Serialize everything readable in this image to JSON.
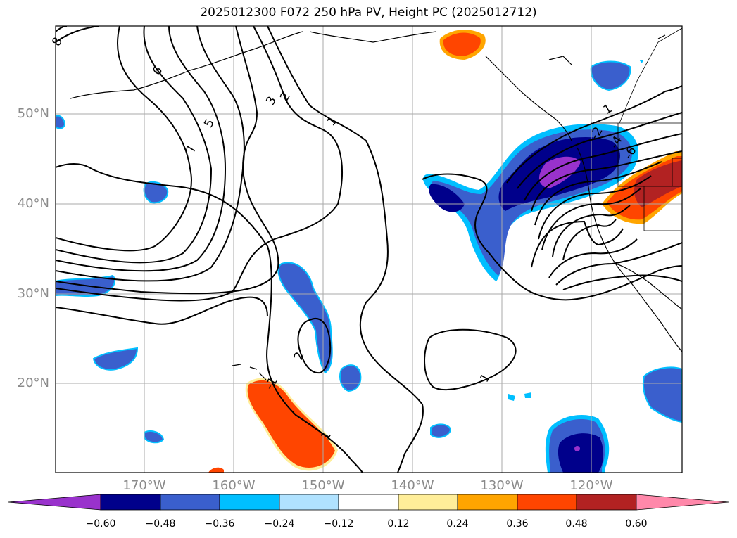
{
  "title": "2025012300 F072 250 hPa PV, Height PC (2025012712)",
  "map": {
    "lat_labels": [
      "50°N",
      "40°N",
      "30°N",
      "20°N"
    ],
    "lon_labels": [
      "170°W",
      "160°W",
      "150°W",
      "140°W",
      "130°W",
      "120°W"
    ],
    "contour_labels": [
      "8",
      "6",
      "5",
      "7",
      "3",
      "2",
      "1",
      "2",
      "-1",
      "1",
      "1",
      "-2",
      "-4",
      "-6",
      "1"
    ],
    "gridlines": true
  },
  "colorbar": {
    "labels": [
      "−0.60",
      "−0.48",
      "−0.36",
      "−0.24",
      "−0.12",
      "0.12",
      "0.24",
      "0.36",
      "0.48",
      "0.60"
    ],
    "colors": [
      "#9932cc",
      "#00008b",
      "#3a5fcd",
      "#00bfff",
      "#b0e2ff",
      "#ffffff",
      "#ffee99",
      "#ffa500",
      "#ff4500",
      "#b22222",
      "#ff88aa"
    ]
  }
}
